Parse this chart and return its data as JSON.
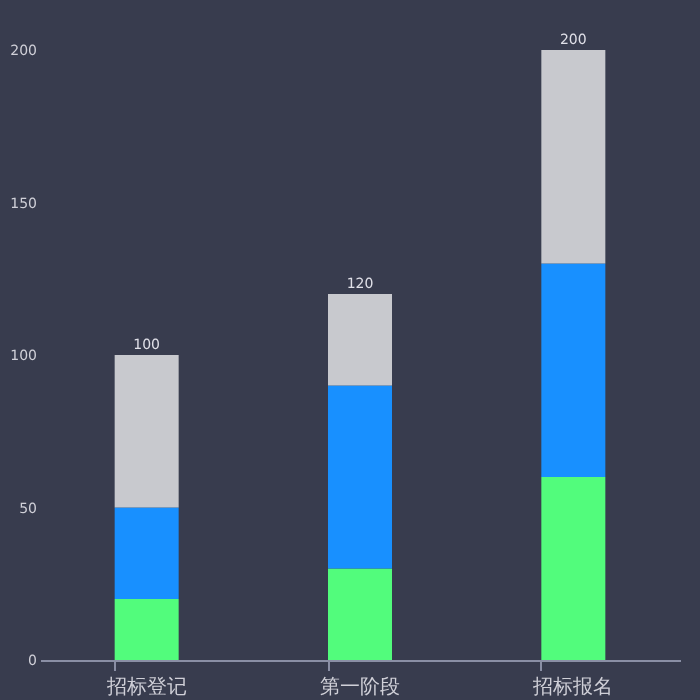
{
  "chart_data": {
    "type": "bar",
    "stacked": true,
    "categories": [
      "招标登记",
      "第一阶段",
      "招标报名"
    ],
    "series": [
      {
        "color": "#52fc7c",
        "values": [
          20,
          30,
          60
        ]
      },
      {
        "color": "#1890ff",
        "values": [
          30,
          60,
          70
        ]
      },
      {
        "color": "#c8c9ce",
        "values": [
          50,
          30,
          70
        ]
      }
    ],
    "totals": [
      "100",
      "120",
      "200"
    ],
    "ylim": [
      0,
      200
    ],
    "yticks": [
      0,
      50,
      100,
      150,
      200
    ]
  }
}
